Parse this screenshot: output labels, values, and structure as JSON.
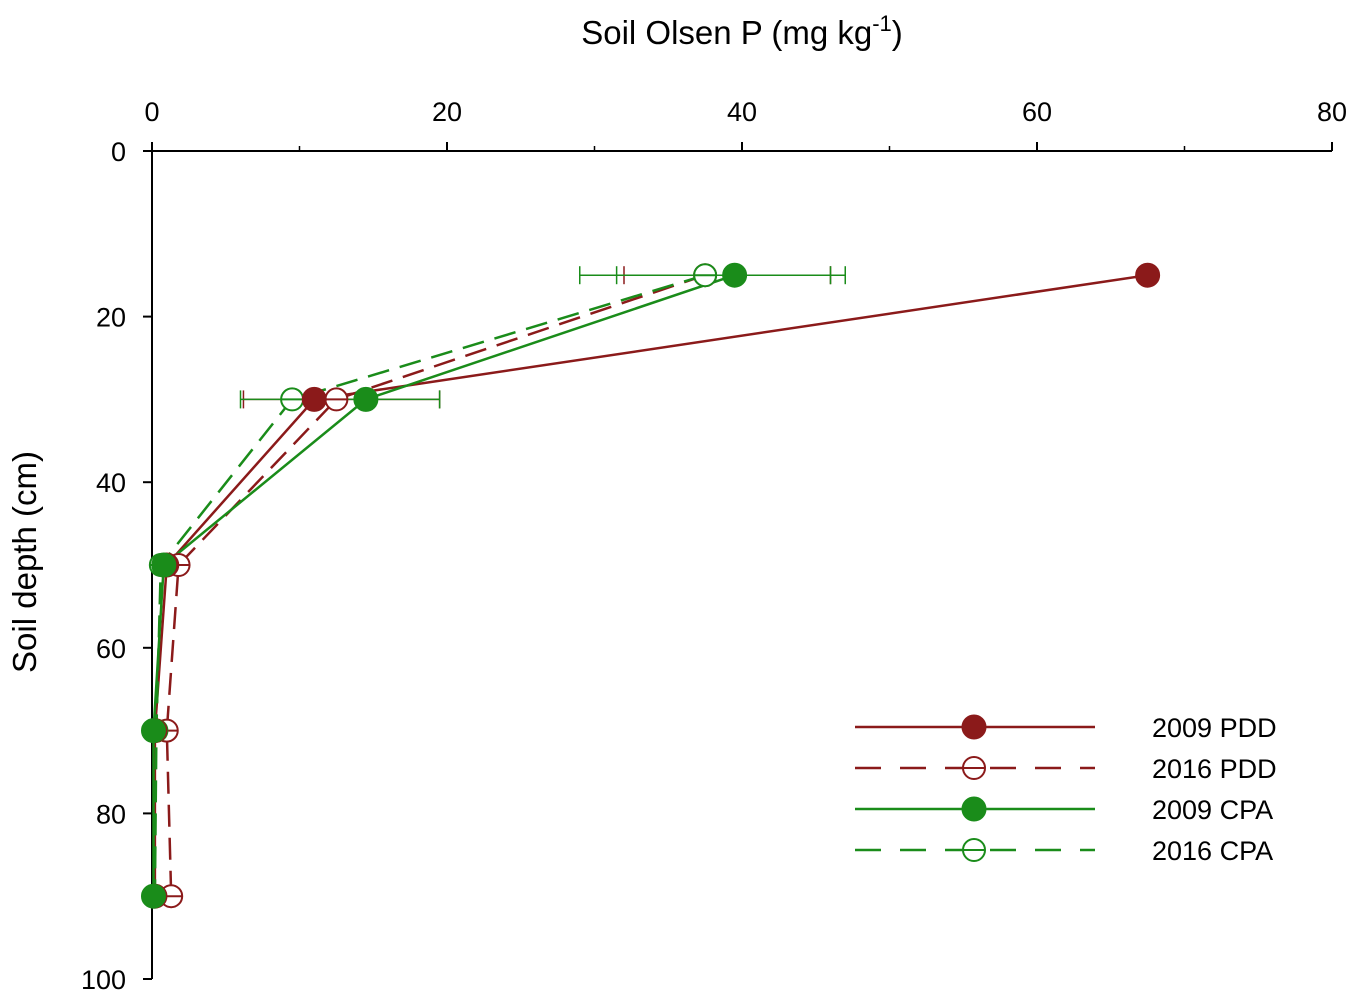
{
  "chart_data": {
    "type": "line",
    "orientation": "depth-profile",
    "xlabel": "Soil Olsen P (mg kg",
    "xlabel_sup": "-1",
    "xlabel_close": ")",
    "ylabel": "Soil depth (cm)",
    "xlim": [
      0,
      80
    ],
    "ylim": [
      0,
      100
    ],
    "y_inverted": true,
    "x_axis_position": "top",
    "grid": false,
    "x_ticks": [
      "0",
      "20",
      "40",
      "60",
      "80"
    ],
    "y_ticks": [
      "0",
      "20",
      "40",
      "60",
      "80",
      "100"
    ],
    "legend_position": "bottom-right",
    "series": [
      {
        "name": "2009 PDD",
        "color": "#8b1a1a",
        "line": "solid",
        "marker": "filled-circle",
        "points": [
          {
            "x": 67.5,
            "y": 15
          },
          {
            "x": 11,
            "y": 30
          },
          {
            "x": 1,
            "y": 50
          },
          {
            "x": 0.2,
            "y": 70
          },
          {
            "x": 0.2,
            "y": 90
          }
        ],
        "error_bars": [
          null,
          null,
          null,
          null,
          null
        ]
      },
      {
        "name": "2016 PDD",
        "color": "#8b1a1a",
        "line": "dashed",
        "marker": "open-circle",
        "points": [
          {
            "x": 37.5,
            "y": 15
          },
          {
            "x": 12.5,
            "y": 30
          },
          {
            "x": 1.8,
            "y": 50
          },
          {
            "x": 1,
            "y": 70
          },
          {
            "x": 1.3,
            "y": 90
          }
        ],
        "error_bars": [
          {
            "low": 32,
            "high": 46
          },
          {
            "low": 6.2,
            "high": 19.5
          },
          null,
          null,
          null
        ]
      },
      {
        "name": "2009 CPA",
        "color": "#1a8c1a",
        "line": "solid",
        "marker": "filled-circle",
        "points": [
          {
            "x": 39.5,
            "y": 15
          },
          {
            "x": 14.5,
            "y": 30
          },
          {
            "x": 0.8,
            "y": 50
          },
          {
            "x": 0.1,
            "y": 70
          },
          {
            "x": 0.1,
            "y": 90
          }
        ],
        "error_bars": [
          {
            "low": 31.5,
            "high": 47
          },
          {
            "low": 10,
            "high": 19.5
          },
          null,
          null,
          null
        ]
      },
      {
        "name": "2016 CPA",
        "color": "#1a8c1a",
        "line": "dashed",
        "marker": "open-circle",
        "points": [
          {
            "x": 37.5,
            "y": 15
          },
          {
            "x": 9.5,
            "y": 30
          },
          {
            "x": 0.6,
            "y": 50
          },
          {
            "x": 0.3,
            "y": 70
          },
          {
            "x": 0.2,
            "y": 90
          }
        ],
        "error_bars": [
          {
            "low": 29,
            "high": 46
          },
          {
            "low": 6,
            "high": 13
          },
          null,
          null,
          null
        ]
      }
    ]
  }
}
